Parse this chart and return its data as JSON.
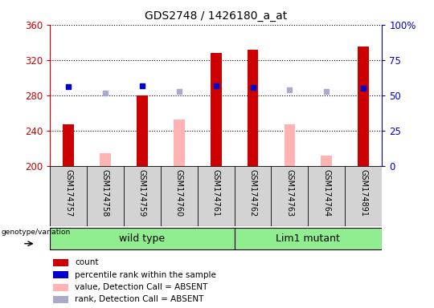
{
  "title": "GDS2748 / 1426180_a_at",
  "samples": [
    "GSM174757",
    "GSM174758",
    "GSM174759",
    "GSM174760",
    "GSM174761",
    "GSM174762",
    "GSM174763",
    "GSM174764",
    "GSM174891"
  ],
  "count_values": [
    247,
    null,
    280,
    null,
    328,
    332,
    null,
    null,
    335
  ],
  "count_absent_values": [
    null,
    215,
    null,
    253,
    null,
    null,
    247,
    212,
    null
  ],
  "rank_present_values": [
    290,
    null,
    291,
    null,
    291,
    289,
    null,
    null,
    288
  ],
  "rank_absent_values": [
    null,
    283,
    null,
    285,
    null,
    null,
    286,
    285,
    null
  ],
  "ylim": [
    200,
    360
  ],
  "yticks": [
    200,
    240,
    280,
    320,
    360
  ],
  "right_yticks_vals": [
    0,
    25,
    50,
    75,
    100
  ],
  "right_ytick_labels": [
    "0",
    "25",
    "50",
    "75",
    "100%"
  ],
  "bar_color_present": "#cc0000",
  "bar_color_absent": "#ffb3b3",
  "marker_color_present": "#0000cc",
  "marker_color_absent": "#aaaacc",
  "group_color": "#90ee90",
  "group_ranges": {
    "wild type": [
      0,
      4
    ],
    "Lim1 mutant": [
      5,
      8
    ]
  },
  "legend_items": [
    "count",
    "percentile rank within the sample",
    "value, Detection Call = ABSENT",
    "rank, Detection Call = ABSENT"
  ],
  "legend_colors": [
    "#cc0000",
    "#0000cc",
    "#ffb3b3",
    "#aaaacc"
  ],
  "bar_width": 0.3
}
